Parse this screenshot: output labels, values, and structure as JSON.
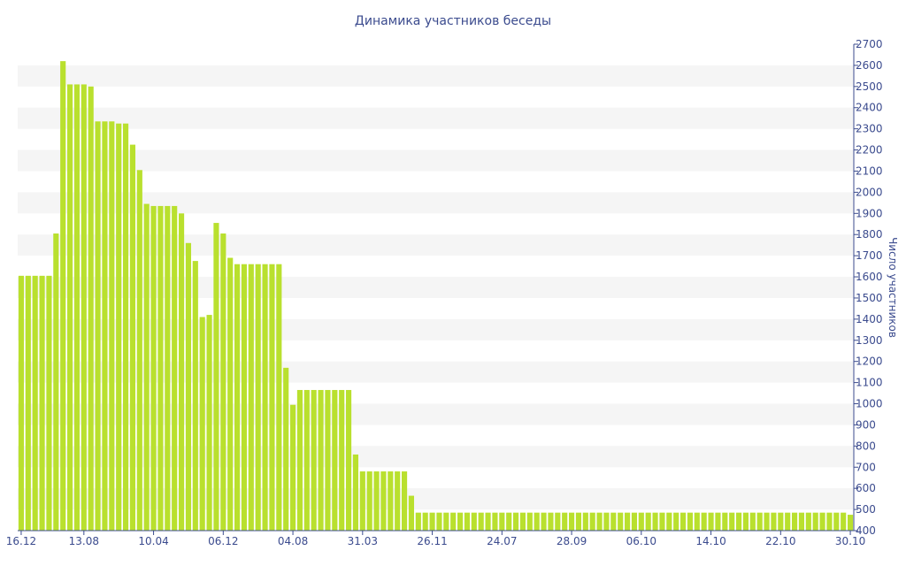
{
  "chart_data": {
    "type": "bar",
    "title": "Динамика участников беседы",
    "xlabel": "",
    "ylabel": "Число участников",
    "ylim": [
      400,
      2700
    ],
    "yticks": [
      400,
      500,
      600,
      700,
      800,
      900,
      1000,
      1100,
      1200,
      1300,
      1400,
      1500,
      1600,
      1700,
      1800,
      1900,
      2000,
      2100,
      2200,
      2300,
      2400,
      2500,
      2600,
      2700
    ],
    "y_axis_position": "right",
    "grid": "horizontal bands",
    "legend": "none",
    "xtick_labels": [
      {
        "index": 0,
        "label": "16.12"
      },
      {
        "index": 9,
        "label": "13.08"
      },
      {
        "index": 19,
        "label": "10.04"
      },
      {
        "index": 29,
        "label": "06.12"
      },
      {
        "index": 39,
        "label": "04.08"
      },
      {
        "index": 49,
        "label": "31.03"
      },
      {
        "index": 59,
        "label": "26.11"
      },
      {
        "index": 69,
        "label": "24.07"
      },
      {
        "index": 79,
        "label": "28.09"
      },
      {
        "index": 89,
        "label": "06.10"
      },
      {
        "index": 99,
        "label": "14.10"
      },
      {
        "index": 109,
        "label": "22.10"
      },
      {
        "index": 119,
        "label": "30.10"
      }
    ],
    "values": [
      1605,
      1605,
      1605,
      1605,
      1605,
      1805,
      2620,
      2510,
      2510,
      2510,
      2500,
      2335,
      2335,
      2335,
      2325,
      2325,
      2225,
      2105,
      1945,
      1935,
      1935,
      1935,
      1935,
      1900,
      1760,
      1675,
      1410,
      1420,
      1855,
      1805,
      1690,
      1660,
      1660,
      1660,
      1660,
      1660,
      1660,
      1660,
      1170,
      995,
      1065,
      1065,
      1065,
      1065,
      1065,
      1065,
      1065,
      1065,
      760,
      680,
      680,
      680,
      680,
      680,
      680,
      680,
      565,
      485,
      485,
      485,
      485,
      485,
      485,
      485,
      485,
      485,
      485,
      485,
      485,
      485,
      485,
      485,
      485,
      485,
      485,
      485,
      485,
      485,
      485,
      485,
      485,
      485,
      485,
      485,
      485,
      485,
      485,
      485,
      485,
      485,
      485,
      485,
      485,
      485,
      485,
      485,
      485,
      485,
      485,
      485,
      485,
      485,
      485,
      485,
      485,
      485,
      485,
      485,
      485,
      485,
      485,
      485,
      485,
      485,
      485,
      485,
      485,
      485,
      485,
      475
    ],
    "colors": {
      "bar": "#b9e02e",
      "band": "#f5f5f5",
      "axis": "#3b4b8e"
    }
  }
}
